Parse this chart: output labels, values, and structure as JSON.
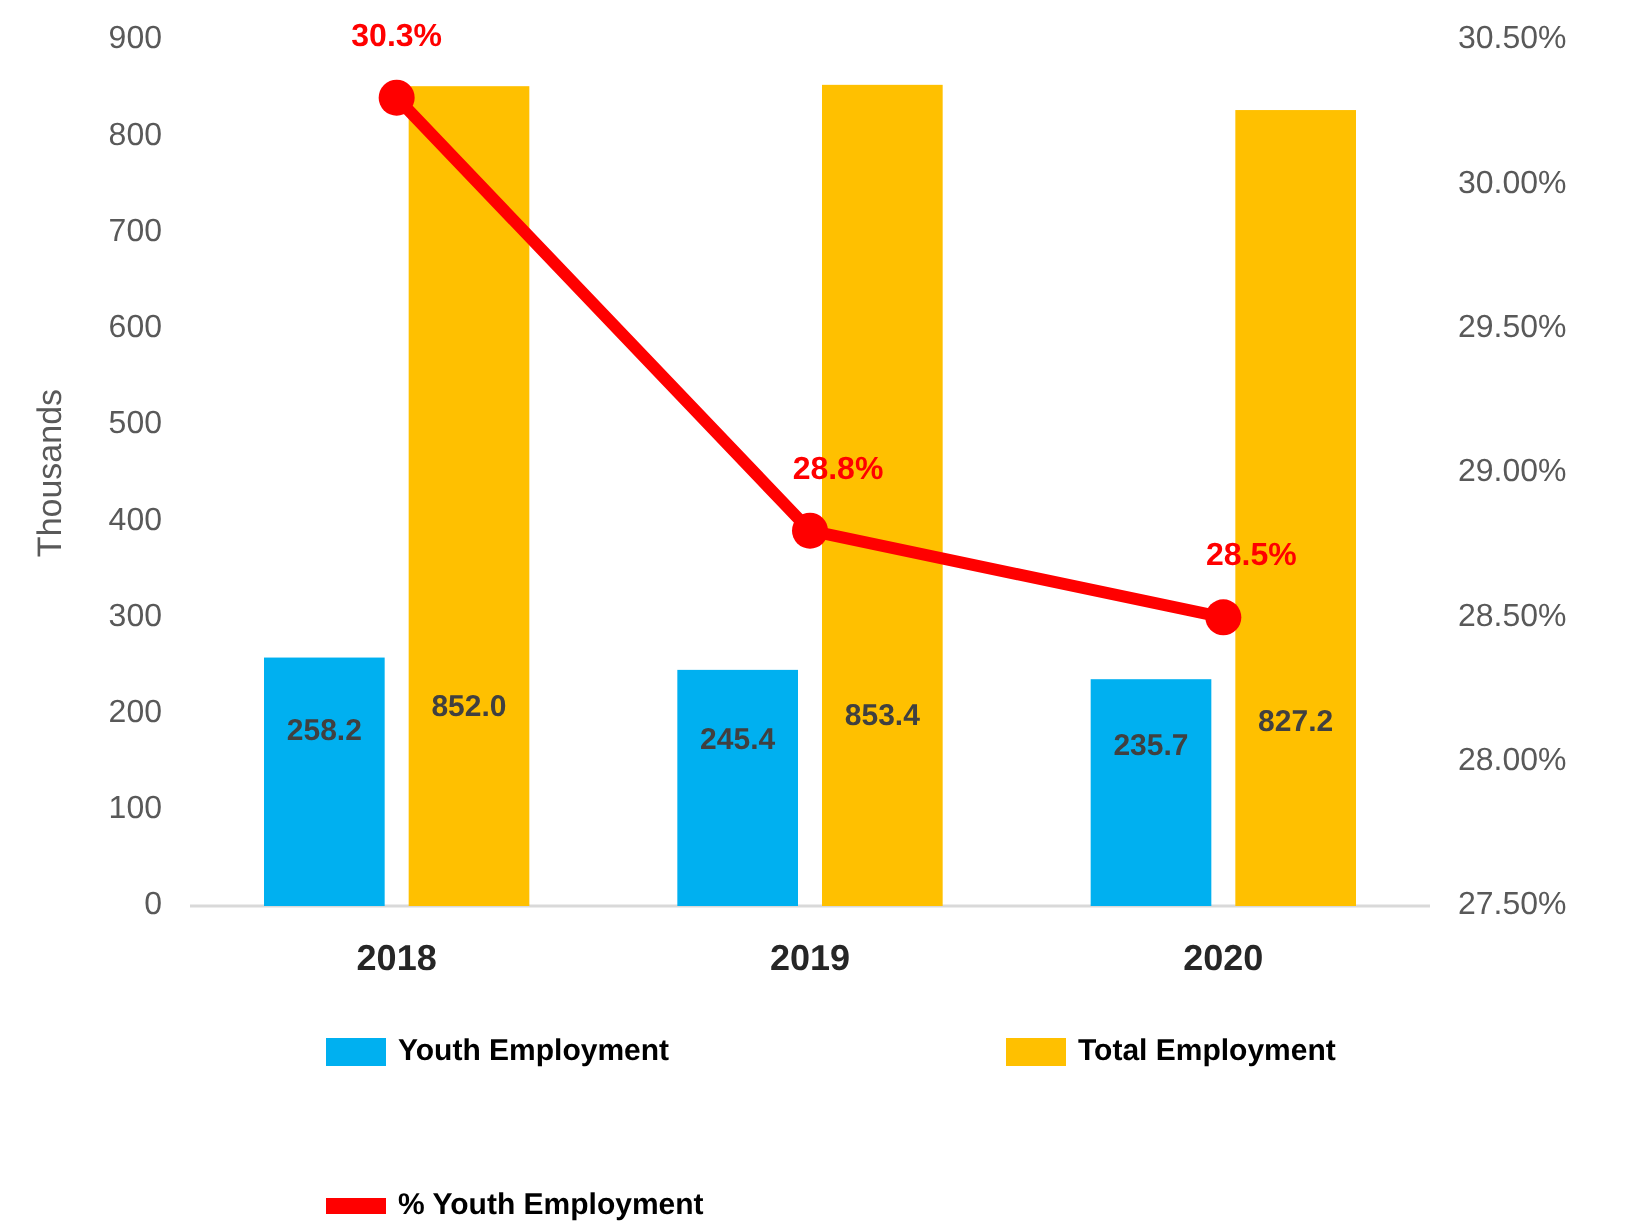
{
  "chart_data": {
    "type": "bar",
    "categories": [
      "2018",
      "2019",
      "2020"
    ],
    "ylabel": "Thousands",
    "ylim": [
      0,
      900
    ],
    "yticks": [
      0,
      100,
      200,
      300,
      400,
      500,
      600,
      700,
      800,
      900
    ],
    "y2lim": [
      27.5,
      30.5
    ],
    "y2ticks": [
      {
        "value": 27.5,
        "label": "27.50%"
      },
      {
        "value": 28,
        "label": "28.00%"
      },
      {
        "value": 28.5,
        "label": "28.50%"
      },
      {
        "value": 29,
        "label": "29.00%"
      },
      {
        "value": 29.5,
        "label": "29.50%"
      },
      {
        "value": 30,
        "label": "30.00%"
      },
      {
        "value": 30.5,
        "label": "30.50%"
      }
    ],
    "grid": false,
    "legend": "bottom",
    "marker": "circle",
    "line_style": "solid",
    "series": [
      {
        "name": "Youth Employment",
        "color": "#00b0f0",
        "values": [
          258.2,
          245.4,
          235.7
        ],
        "value_labels": [
          "258.2",
          "245.4",
          "235.7"
        ]
      },
      {
        "name": "Total Employment",
        "color": "#ffc000",
        "values": [
          852.0,
          853.4,
          827.2
        ],
        "value_labels": [
          "852.0",
          "853.4",
          "827.2"
        ]
      },
      {
        "type": "line",
        "axis": "y2",
        "name": "% Youth Employment",
        "color": "#ff0000",
        "values": [
          30.3,
          28.8,
          28.5
        ],
        "value_labels": [
          "30.3%",
          "28.8%",
          "28.5%"
        ]
      }
    ]
  }
}
